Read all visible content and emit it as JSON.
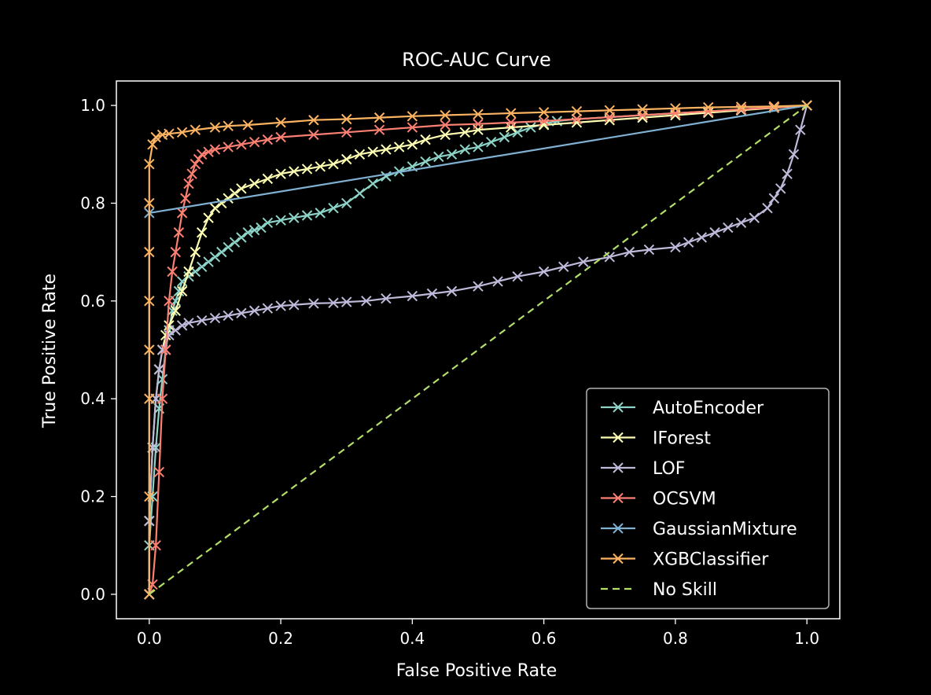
{
  "chart_data": {
    "type": "line",
    "title": "ROC-AUC Curve",
    "xlabel": "False Positive Rate",
    "ylabel": "True Positive Rate",
    "xlim": [
      -0.05,
      1.05
    ],
    "ylim": [
      -0.05,
      1.05
    ],
    "xticks": [
      0.0,
      0.2,
      0.4,
      0.6,
      0.8,
      1.0
    ],
    "yticks": [
      0.0,
      0.2,
      0.4,
      0.6,
      0.8,
      1.0
    ],
    "xtick_labels": [
      "0.0",
      "0.2",
      "0.4",
      "0.6",
      "0.8",
      "1.0"
    ],
    "ytick_labels": [
      "0.0",
      "0.2",
      "0.4",
      "0.6",
      "0.8",
      "1.0"
    ],
    "grid": false,
    "legend_position": "lower-right",
    "background": "#000000",
    "series": [
      {
        "name": "AutoEncoder",
        "color": "#8dd3c7",
        "marker": "x",
        "linestyle": "solid",
        "x": [
          0.0,
          0.0,
          0.005,
          0.01,
          0.015,
          0.02,
          0.025,
          0.03,
          0.035,
          0.04,
          0.045,
          0.05,
          0.06,
          0.07,
          0.08,
          0.09,
          0.1,
          0.11,
          0.12,
          0.13,
          0.14,
          0.15,
          0.16,
          0.17,
          0.18,
          0.2,
          0.22,
          0.24,
          0.26,
          0.28,
          0.3,
          0.32,
          0.34,
          0.36,
          0.38,
          0.4,
          0.42,
          0.44,
          0.46,
          0.48,
          0.5,
          0.52,
          0.54,
          0.56,
          0.58,
          0.6,
          0.62,
          0.65,
          0.7,
          0.75,
          0.8,
          0.85,
          0.9,
          0.95,
          1.0
        ],
        "y": [
          0.0,
          0.1,
          0.2,
          0.3,
          0.38,
          0.44,
          0.5,
          0.54,
          0.58,
          0.6,
          0.62,
          0.64,
          0.65,
          0.66,
          0.67,
          0.68,
          0.69,
          0.7,
          0.71,
          0.72,
          0.73,
          0.74,
          0.745,
          0.75,
          0.76,
          0.765,
          0.77,
          0.775,
          0.78,
          0.79,
          0.8,
          0.82,
          0.84,
          0.855,
          0.865,
          0.875,
          0.885,
          0.895,
          0.9,
          0.91,
          0.915,
          0.925,
          0.935,
          0.945,
          0.955,
          0.962,
          0.968,
          0.972,
          0.976,
          0.98,
          0.984,
          0.988,
          0.992,
          0.996,
          1.0
        ]
      },
      {
        "name": "IForest",
        "color": "#ffffb3",
        "marker": "x",
        "linestyle": "solid",
        "x": [
          0.0,
          0.0,
          0.005,
          0.01,
          0.015,
          0.02,
          0.025,
          0.03,
          0.04,
          0.05,
          0.06,
          0.07,
          0.08,
          0.09,
          0.1,
          0.11,
          0.12,
          0.13,
          0.14,
          0.16,
          0.18,
          0.2,
          0.22,
          0.24,
          0.26,
          0.28,
          0.3,
          0.32,
          0.34,
          0.36,
          0.38,
          0.4,
          0.42,
          0.45,
          0.48,
          0.5,
          0.55,
          0.6,
          0.65,
          0.7,
          0.75,
          0.8,
          0.85,
          0.9,
          0.95,
          1.0
        ],
        "y": [
          0.0,
          0.15,
          0.3,
          0.4,
          0.46,
          0.5,
          0.53,
          0.55,
          0.58,
          0.62,
          0.66,
          0.7,
          0.74,
          0.77,
          0.79,
          0.8,
          0.81,
          0.82,
          0.83,
          0.84,
          0.85,
          0.86,
          0.865,
          0.87,
          0.875,
          0.88,
          0.89,
          0.9,
          0.905,
          0.91,
          0.915,
          0.92,
          0.93,
          0.94,
          0.945,
          0.95,
          0.955,
          0.96,
          0.965,
          0.97,
          0.975,
          0.98,
          0.985,
          0.99,
          0.995,
          1.0
        ]
      },
      {
        "name": "LOF",
        "color": "#bebada",
        "marker": "x",
        "linestyle": "solid",
        "x": [
          0.0,
          0.0,
          0.005,
          0.01,
          0.015,
          0.02,
          0.03,
          0.04,
          0.05,
          0.06,
          0.08,
          0.1,
          0.12,
          0.14,
          0.16,
          0.18,
          0.2,
          0.22,
          0.25,
          0.28,
          0.3,
          0.33,
          0.36,
          0.4,
          0.43,
          0.46,
          0.5,
          0.53,
          0.56,
          0.6,
          0.63,
          0.66,
          0.7,
          0.73,
          0.76,
          0.8,
          0.82,
          0.84,
          0.86,
          0.88,
          0.9,
          0.92,
          0.94,
          0.95,
          0.96,
          0.97,
          0.98,
          0.99,
          1.0
        ],
        "y": [
          0.0,
          0.15,
          0.3,
          0.4,
          0.46,
          0.5,
          0.53,
          0.54,
          0.55,
          0.555,
          0.56,
          0.565,
          0.57,
          0.575,
          0.58,
          0.585,
          0.59,
          0.592,
          0.595,
          0.596,
          0.598,
          0.6,
          0.605,
          0.61,
          0.615,
          0.62,
          0.63,
          0.64,
          0.65,
          0.66,
          0.67,
          0.68,
          0.69,
          0.7,
          0.705,
          0.71,
          0.72,
          0.73,
          0.74,
          0.75,
          0.76,
          0.77,
          0.79,
          0.81,
          0.83,
          0.86,
          0.9,
          0.95,
          1.0
        ]
      },
      {
        "name": "OCSVM",
        "color": "#fb8072",
        "marker": "x",
        "linestyle": "solid",
        "x": [
          0.0,
          0.005,
          0.01,
          0.015,
          0.02,
          0.025,
          0.03,
          0.035,
          0.04,
          0.045,
          0.05,
          0.055,
          0.06,
          0.065,
          0.07,
          0.075,
          0.08,
          0.09,
          0.1,
          0.12,
          0.14,
          0.16,
          0.18,
          0.2,
          0.25,
          0.3,
          0.35,
          0.4,
          0.45,
          0.5,
          0.55,
          0.6,
          0.65,
          0.7,
          0.75,
          0.8,
          0.85,
          0.9,
          0.95,
          1.0
        ],
        "y": [
          0.0,
          0.02,
          0.1,
          0.25,
          0.4,
          0.5,
          0.6,
          0.66,
          0.7,
          0.74,
          0.78,
          0.81,
          0.84,
          0.86,
          0.88,
          0.89,
          0.9,
          0.905,
          0.91,
          0.915,
          0.92,
          0.925,
          0.93,
          0.935,
          0.94,
          0.945,
          0.95,
          0.955,
          0.96,
          0.962,
          0.965,
          0.968,
          0.972,
          0.976,
          0.98,
          0.984,
          0.988,
          0.992,
          0.996,
          1.0
        ]
      },
      {
        "name": "GaussianMixture",
        "color": "#80b1d3",
        "marker": "x",
        "linestyle": "solid",
        "x": [
          0.0,
          0.0,
          1.0
        ],
        "y": [
          0.0,
          0.78,
          1.0
        ]
      },
      {
        "name": "XGBClassifier",
        "color": "#fdb462",
        "marker": "x",
        "linestyle": "solid",
        "x": [
          0.0,
          0.0,
          0.0,
          0.0,
          0.0,
          0.0,
          0.0,
          0.0,
          0.005,
          0.01,
          0.02,
          0.03,
          0.05,
          0.07,
          0.1,
          0.12,
          0.15,
          0.2,
          0.25,
          0.3,
          0.35,
          0.4,
          0.45,
          0.5,
          0.55,
          0.6,
          0.65,
          0.7,
          0.75,
          0.8,
          0.85,
          0.9,
          0.95,
          1.0
        ],
        "y": [
          0.0,
          0.2,
          0.4,
          0.5,
          0.6,
          0.7,
          0.8,
          0.88,
          0.92,
          0.935,
          0.94,
          0.942,
          0.945,
          0.95,
          0.955,
          0.958,
          0.96,
          0.965,
          0.97,
          0.972,
          0.975,
          0.978,
          0.98,
          0.982,
          0.984,
          0.986,
          0.988,
          0.99,
          0.992,
          0.994,
          0.996,
          0.997,
          0.998,
          1.0
        ]
      },
      {
        "name": "No Skill",
        "color": "#b3de69",
        "marker": "none",
        "linestyle": "dashed",
        "x": [
          0.0,
          1.0
        ],
        "y": [
          0.0,
          1.0
        ]
      }
    ]
  }
}
